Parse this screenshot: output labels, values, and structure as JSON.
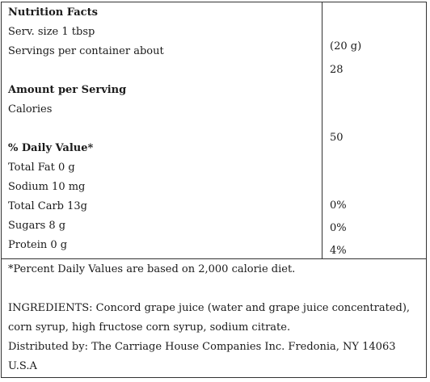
{
  "label": {
    "title": "Nutrition Facts",
    "serving_size": "Serv. size 1 tbsp",
    "serving_weight": "(20 g)",
    "servings_per_container_label": "Servings per container about",
    "servings_per_container_value": "28",
    "amount_per_serving": "Amount per Serving",
    "calories_label": "Calories",
    "calories_value": "50",
    "daily_value_heading": "% Daily Value*",
    "nutrients": {
      "total_fat": "Total Fat 0 g",
      "sodium": "Sodium 10 mg",
      "total_carb": "Total Carb 13g",
      "sugars": "Sugars 8 g",
      "protein": "Protein 0 g"
    },
    "daily_values": [
      "0%",
      "0%",
      "4%"
    ],
    "footnote": "*Percent Daily Values are based on 2,000 calorie diet.",
    "ingredients_line1": "INGREDIENTS: Concord grape juice (water and grape juice concentrated),",
    "ingredients_line2": "corn syrup, high fructose corn syrup, sodium citrate.",
    "distributor_line1": "Distributed by: The Carriage House Companies Inc. Fredonia, NY 14063",
    "distributor_line2": "U.S.A"
  }
}
